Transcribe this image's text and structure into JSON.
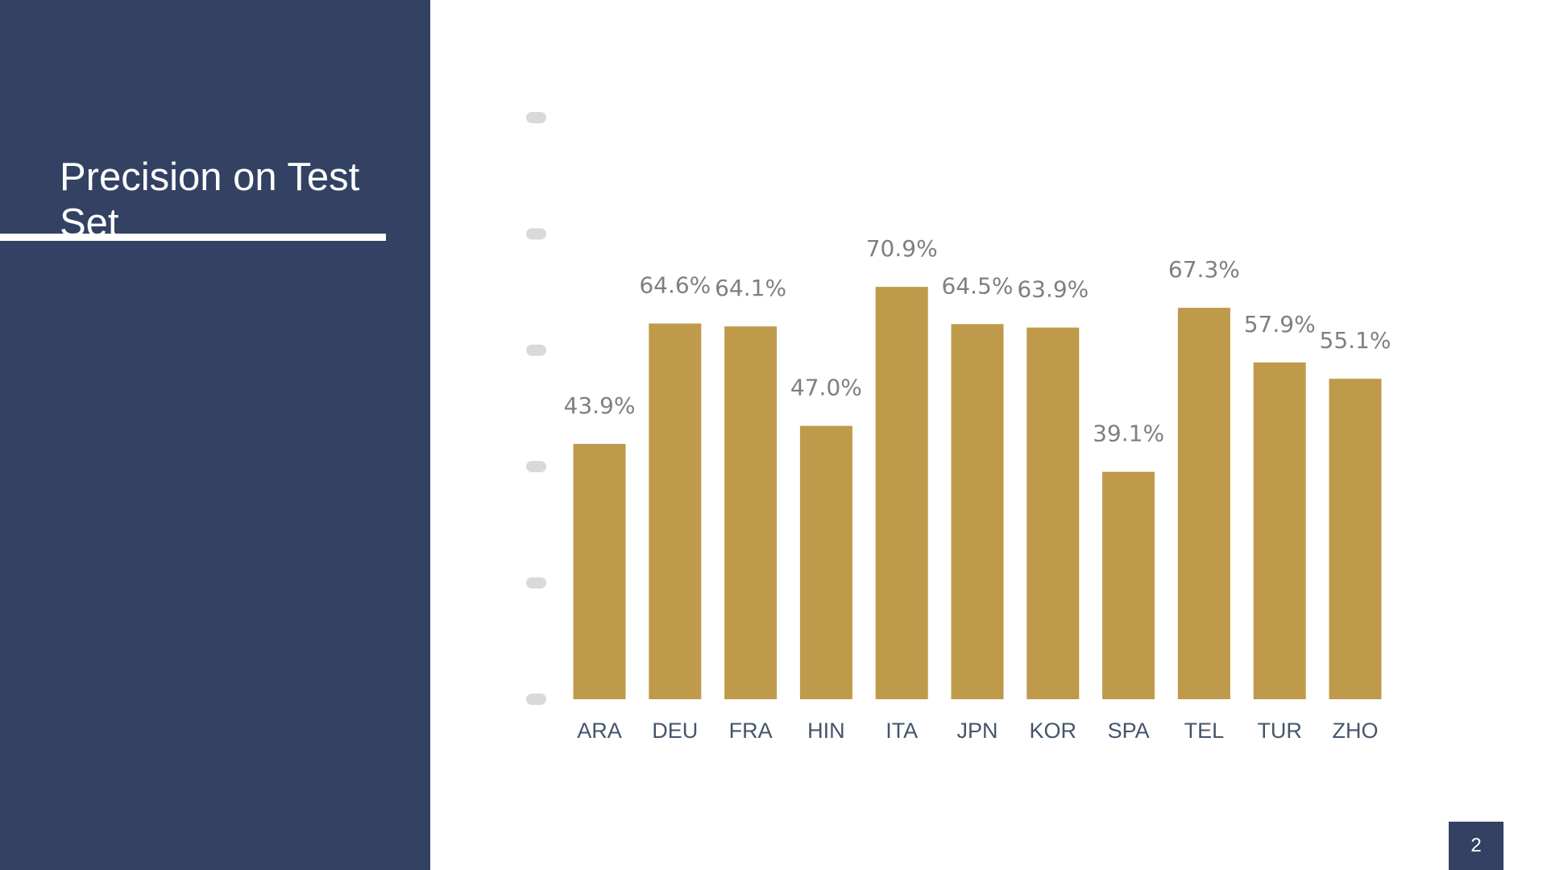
{
  "slide": {
    "title": "Precision on Test Set",
    "page_number": "2"
  },
  "colors": {
    "panel": "#334263",
    "bar": "#BF9A4B",
    "value_label": "#7F7F7F",
    "category_label": "#44546A",
    "gridline_marker": "#D9D9D9",
    "accent_line": "#FFFFFF"
  },
  "chart_data": {
    "type": "bar",
    "title": "",
    "xlabel": "",
    "ylabel": "",
    "ylim": [
      0,
      100
    ],
    "grid": false,
    "legend": "none",
    "categories": [
      "ARA",
      "DEU",
      "FRA",
      "HIN",
      "ITA",
      "JPN",
      "KOR",
      "SPA",
      "TEL",
      "TUR",
      "ZHO"
    ],
    "values": [
      43.9,
      64.6,
      64.1,
      47.0,
      70.9,
      64.5,
      63.9,
      39.1,
      67.3,
      57.9,
      55.1
    ],
    "data_labels": [
      "43.9%",
      "64.6%",
      "64.1%",
      "47.0%",
      "70.9%",
      "64.5%",
      "63.9%",
      "39.1%",
      "67.3%",
      "57.9%",
      "55.1%"
    ]
  }
}
